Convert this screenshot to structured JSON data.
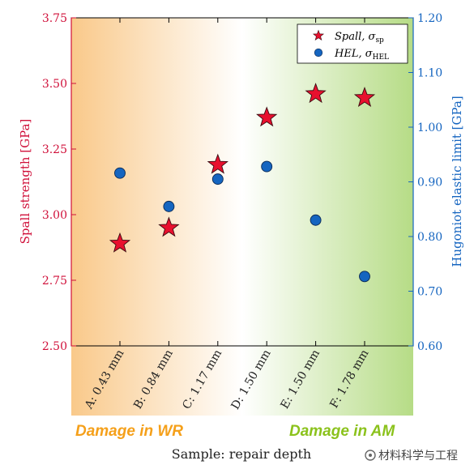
{
  "chart_data": {
    "type": "scatter",
    "xlabel": "Sample: repair depth",
    "categories": [
      "A: 0.43 mm",
      "B: 0.84 mm",
      "C: 1.17 mm",
      "D: 1.50 mm",
      "E: 1.50 mm",
      "F: 1.78 mm"
    ],
    "left_axis": {
      "label": "Spall strength [GPa]",
      "ylim": [
        2.5,
        3.75
      ],
      "ticks": [
        "2.50",
        "2.75",
        "3.00",
        "3.25",
        "3.50",
        "3.75"
      ],
      "color": "#d0103a"
    },
    "right_axis": {
      "label": "Hugoniot elastic limit [GPa]",
      "ylim": [
        0.6,
        1.2
      ],
      "ticks": [
        "0.60",
        "0.70",
        "0.80",
        "0.90",
        "1.00",
        "1.10",
        "1.20"
      ],
      "color": "#1565c0"
    },
    "series": [
      {
        "name": "Spall, σ",
        "subscript": "sp",
        "marker": "star",
        "axis": "left",
        "color": "#e8102e",
        "values": [
          2.89,
          2.95,
          3.19,
          3.37,
          3.46,
          3.445
        ]
      },
      {
        "name": "HEL, σ",
        "subscript": "HEL",
        "marker": "circle",
        "axis": "right",
        "color": "#1565c0",
        "values": [
          0.916,
          0.855,
          0.905,
          0.928,
          0.83,
          0.727
        ]
      }
    ],
    "legend_position": "top-right",
    "grid": false,
    "background_gradient": [
      "#f9c98a",
      "#ffffff",
      "#b6dc86"
    ]
  },
  "annotations": {
    "left_text": "Damage in WR",
    "left_color": "#f5a01a",
    "right_text": "Damage in AM",
    "right_color": "#8bc21c"
  },
  "watermark": {
    "text": "材料科学与工程"
  }
}
